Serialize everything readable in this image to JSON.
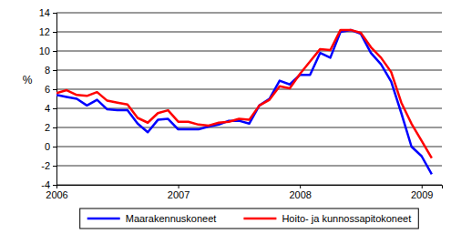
{
  "chart_data": {
    "type": "line",
    "y_label": "%",
    "categories": [
      "2006",
      null,
      null,
      null,
      null,
      null,
      null,
      null,
      null,
      null,
      null,
      null,
      "2007",
      null,
      null,
      null,
      null,
      null,
      null,
      null,
      null,
      null,
      null,
      null,
      "2008",
      null,
      null,
      null,
      null,
      null,
      null,
      null,
      null,
      null,
      null,
      null,
      "2009",
      null
    ],
    "series": [
      {
        "name": "Maarakennuskoneet",
        "color": "#0000ff",
        "values": [
          5.4,
          5.2,
          5.0,
          4.3,
          4.9,
          3.9,
          3.8,
          3.8,
          2.4,
          1.5,
          2.8,
          2.9,
          1.8,
          1.8,
          1.8,
          2.1,
          2.3,
          2.7,
          2.7,
          2.4,
          4.3,
          5.0,
          6.9,
          6.5,
          7.5,
          7.5,
          9.8,
          9.3,
          12.0,
          12.2,
          11.8,
          9.8,
          8.6,
          6.8,
          3.5,
          0.0,
          -1.0,
          -2.9
        ]
      },
      {
        "name": "Hoito- ja kunnossapitokoneet",
        "color": "#ff0000",
        "values": [
          5.6,
          5.9,
          5.4,
          5.3,
          5.7,
          4.8,
          4.6,
          4.4,
          3.0,
          2.5,
          3.5,
          3.8,
          2.6,
          2.6,
          2.3,
          2.2,
          2.5,
          2.6,
          2.9,
          2.8,
          4.3,
          4.9,
          6.3,
          6.1,
          7.6,
          8.9,
          10.2,
          10.1,
          12.2,
          12.2,
          11.9,
          10.4,
          9.3,
          7.8,
          4.6,
          2.4,
          0.6,
          -1.2
        ]
      }
    ],
    "ylim": [
      -4,
      14
    ],
    "yticks": [
      -4,
      -2,
      0,
      2,
      4,
      6,
      8,
      10,
      12,
      14
    ],
    "grid": true,
    "legend": "bottom"
  }
}
